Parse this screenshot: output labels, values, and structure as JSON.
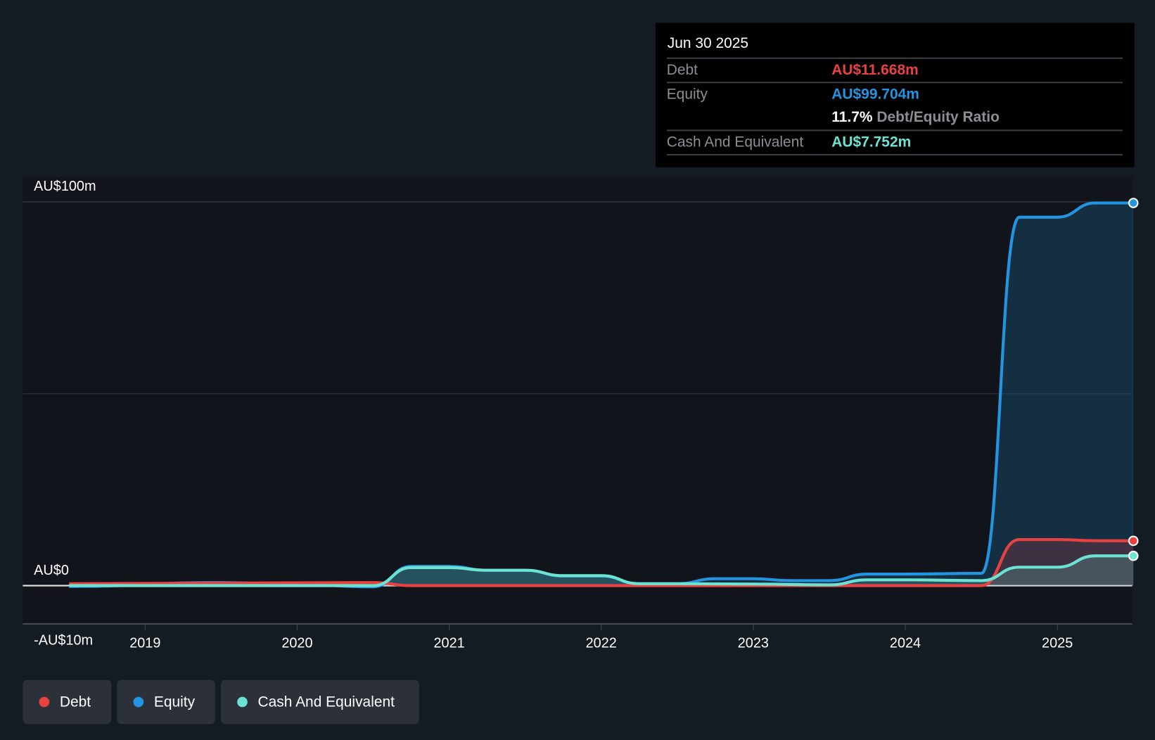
{
  "tooltip": {
    "date": "Jun 30 2025",
    "rows": [
      {
        "label": "Debt",
        "value": "AU$11.668m"
      },
      {
        "label": "Equity",
        "value": "AU$99.704m"
      },
      {
        "label": "",
        "value": "11.7%",
        "suffix": "Debt/Equity Ratio"
      },
      {
        "label": "Cash And Equivalent",
        "value": "AU$7.752m"
      }
    ]
  },
  "legend": [
    {
      "label": "Debt",
      "color": "#e84142"
    },
    {
      "label": "Equity",
      "color": "#2394df"
    },
    {
      "label": "Cash And Equivalent",
      "color": "#6ce3d2"
    }
  ],
  "chart_data": {
    "type": "area",
    "title": "",
    "ylabel": "",
    "ylim": [
      -10,
      100
    ],
    "y_tick_labels": [
      "AU$100m",
      "AU$0",
      "-AU$10m"
    ],
    "y_ticks": [
      100,
      0,
      -10
    ],
    "x_tick_labels": [
      "2019",
      "2020",
      "2021",
      "2022",
      "2023",
      "2024",
      "2025"
    ],
    "x_ticks": [
      2019,
      2020,
      2021,
      2022,
      2023,
      2024,
      2025
    ],
    "xlim": [
      2018.2,
      2025.5
    ],
    "grid": true,
    "series": [
      {
        "name": "Equity",
        "color": "#2394df",
        "x": [
          2018.5,
          2019.5,
          2020.0,
          2020.5,
          2020.75,
          2021.0,
          2021.25,
          2021.5,
          2021.75,
          2022.0,
          2022.25,
          2022.5,
          2022.75,
          2023.0,
          2023.25,
          2023.5,
          2023.75,
          2024.0,
          2024.5,
          2024.75,
          2025.0,
          2025.25,
          2025.5
        ],
        "y": [
          -0.2,
          0.8,
          0.3,
          -0.3,
          5.0,
          5.0,
          4.0,
          4.0,
          2.5,
          2.5,
          0.5,
          0.5,
          1.8,
          1.8,
          1.3,
          1.3,
          3.0,
          3.0,
          3.2,
          96.0,
          96.0,
          99.7,
          99.704
        ]
      },
      {
        "name": "Debt",
        "color": "#e84142",
        "x": [
          2018.5,
          2020.5,
          2020.75,
          2021.0,
          2024.5,
          2024.75,
          2025.0,
          2025.25,
          2025.5
        ],
        "y": [
          0.5,
          0.8,
          0.0,
          0.0,
          0.0,
          12.0,
          12.0,
          11.7,
          11.668
        ]
      },
      {
        "name": "Cash And Equivalent",
        "color": "#6ce3d2",
        "x": [
          2018.5,
          2020.5,
          2020.75,
          2021.0,
          2021.25,
          2021.5,
          2021.75,
          2022.0,
          2022.25,
          2022.5,
          2023.0,
          2023.5,
          2023.75,
          2024.0,
          2024.5,
          2024.75,
          2025.0,
          2025.25,
          2025.5
        ],
        "y": [
          0.0,
          0.0,
          4.7,
          4.7,
          4.0,
          4.0,
          2.6,
          2.6,
          0.5,
          0.5,
          0.4,
          0.2,
          1.5,
          1.5,
          1.3,
          4.8,
          4.8,
          7.75,
          7.752
        ]
      }
    ]
  }
}
